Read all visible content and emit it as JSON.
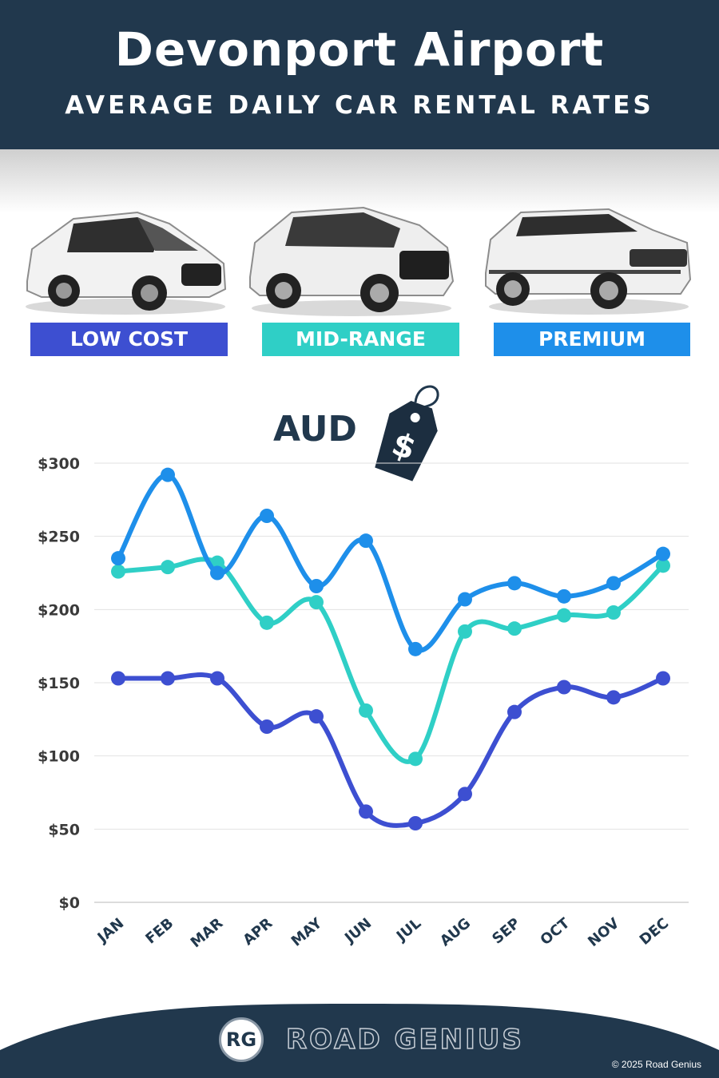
{
  "header": {
    "title": "Devonport Airport",
    "subtitle": "AVERAGE DAILY CAR RENTAL RATES"
  },
  "categories": [
    {
      "label": "LOW COST",
      "color": "#3d4fd1"
    },
    {
      "label": "MID-RANGE",
      "color": "#2fcfc6"
    },
    {
      "label": "PREMIUM",
      "color": "#1e8fea"
    }
  ],
  "currency_label": "AUD",
  "price_tag_symbol": "$",
  "chart_data": {
    "type": "line",
    "categories": [
      "JAN",
      "FEB",
      "MAR",
      "APR",
      "MAY",
      "JUN",
      "JUL",
      "AUG",
      "SEP",
      "OCT",
      "NOV",
      "DEC"
    ],
    "y_tick_labels": [
      "$0",
      "$50",
      "$100",
      "$150",
      "$200",
      "$250",
      "$300"
    ],
    "ylim": [
      0,
      300
    ],
    "grid": true,
    "series": [
      {
        "name": "LOW COST",
        "color": "#3d4fd1",
        "values": [
          153,
          153,
          153,
          120,
          127,
          62,
          54,
          74,
          130,
          147,
          140,
          153
        ]
      },
      {
        "name": "MID-RANGE",
        "color": "#2fcfc6",
        "values": [
          226,
          229,
          232,
          191,
          205,
          131,
          98,
          185,
          187,
          196,
          198,
          230
        ]
      },
      {
        "name": "PREMIUM",
        "color": "#1e8fea",
        "values": [
          235,
          292,
          225,
          264,
          216,
          247,
          173,
          207,
          218,
          209,
          218,
          238
        ]
      }
    ]
  },
  "footer": {
    "logo_mark": "RG",
    "brand": "ROAD GENIUS",
    "copyright": "© 2025 Road Genius"
  }
}
